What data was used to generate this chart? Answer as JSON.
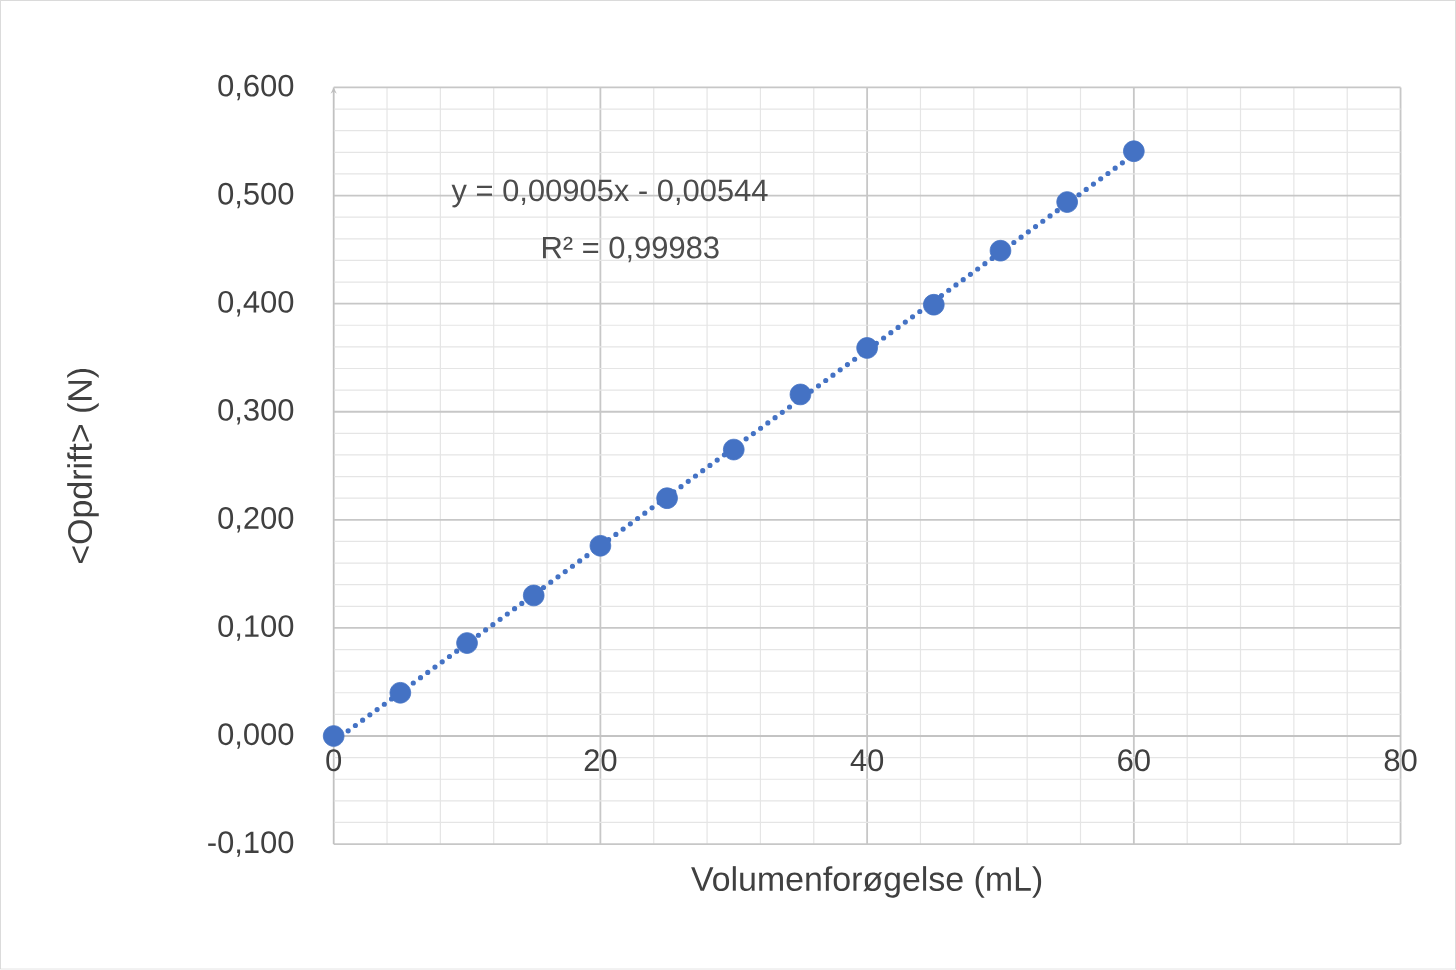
{
  "chart_data": {
    "type": "scatter",
    "xlabel": "Volumenforøgelse (mL)",
    "ylabel": "<Opdrift> (N)",
    "annotations": [
      "y = 0,00905x - 0,00544",
      "R² = 0,99983"
    ],
    "xlim": [
      0,
      80
    ],
    "xticks": [
      0,
      20,
      40,
      60,
      80
    ],
    "ylim": [
      -0.1,
      0.6
    ],
    "yticks": [
      {
        "value": -0.1,
        "label": "-0,100"
      },
      {
        "value": 0,
        "label": "0,000"
      },
      {
        "value": 0.1,
        "label": "0,100"
      },
      {
        "value": 0.2,
        "label": "0,200"
      },
      {
        "value": 0.3,
        "label": "0,300"
      },
      {
        "value": 0.4,
        "label": "0,400"
      },
      {
        "value": 0.5,
        "label": "0,500"
      },
      {
        "value": 0.6,
        "label": "0,600"
      }
    ],
    "grid": true,
    "series": [
      {
        "marker": "circle",
        "color": "#4472c4",
        "x": [
          0,
          5,
          10,
          15,
          20,
          25,
          30,
          35,
          40,
          45,
          50,
          55,
          60
        ],
        "values": [
          0.0,
          0.04,
          0.086,
          0.13,
          0.176,
          0.22,
          0.265,
          0.316,
          0.359,
          0.399,
          0.449,
          0.494,
          0.541
        ]
      },
      {
        "type": "line",
        "marker": "none",
        "line_style": "dotted",
        "color": "#4472c4",
        "x": [
          0,
          60
        ],
        "values": [
          -0.005,
          0.538
        ]
      }
    ]
  }
}
